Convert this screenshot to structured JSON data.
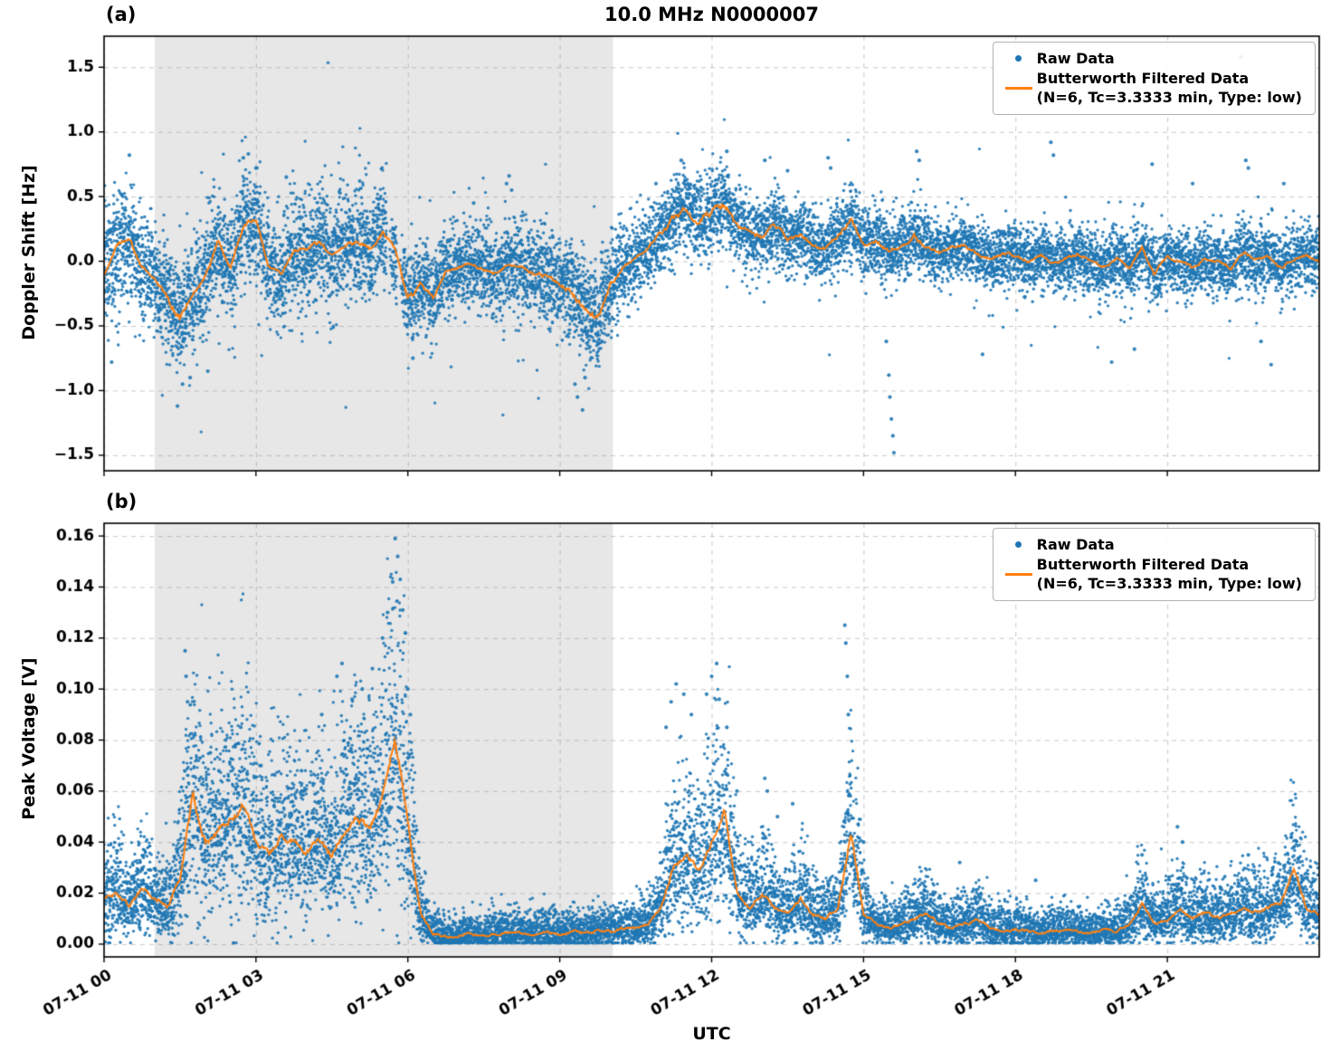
{
  "figure": {
    "legend": {
      "raw_label": "Raw Data",
      "filtered_label": "Butterworth Filtered Data",
      "filtered_sublabel": "(N=6, Tc=3.3333 min, Type: low)"
    },
    "colors": {
      "raw": "#1f77b4",
      "filtered": "#ff7f0e",
      "shade": "#e7e7e7",
      "grid": "#999999",
      "axis": "#000000"
    }
  },
  "chart_data": [
    {
      "type": "scatter",
      "panel_label": "(a)",
      "title": "10.0 MHz N0000007",
      "ylabel": "Doppler Shift [Hz]",
      "ylim": [
        -1.62,
        1.74
      ],
      "ytick_values": [
        1.5,
        1.0,
        0.5,
        0.0,
        -0.5,
        -1.0,
        -1.5
      ],
      "ytick_labels": [
        "1.5",
        "1.0",
        "0.5",
        "0.0",
        "−0.5",
        "−1.0",
        "−1.5"
      ],
      "x_hours_range": [
        0,
        24
      ],
      "xtick_hours": [
        0,
        3,
        6,
        9,
        12,
        15,
        18,
        21
      ],
      "xtick_labels": [
        "07-11 00",
        "07-11 03",
        "07-11 06",
        "07-11 09",
        "07-11 12",
        "07-11 15",
        "07-11 18",
        "07-11 21"
      ],
      "shaded_region_hours": [
        1.0,
        10.05
      ],
      "grid": true,
      "legend_position": "upper right",
      "series": [
        {
          "name": "Raw Data",
          "style": "scatter",
          "n_points": 12000,
          "seed": 42,
          "spread_profile_hours": [
            0,
            5.5,
            6.0,
            9.0,
            9.6,
            10.2,
            13,
            18,
            24
          ],
          "spread_profile_sigma": [
            0.21,
            0.21,
            0.17,
            0.17,
            0.2,
            0.16,
            0.14,
            0.12,
            0.12
          ],
          "tail_fraction": 0.04,
          "tail_scale": 2.2,
          "gaps_hours": [
            [
              5.58,
              5.68
            ],
            [
              5.78,
              5.88
            ]
          ],
          "outliers": [
            [
              0.15,
              -0.78
            ],
            [
              0.5,
              0.82
            ],
            [
              1.45,
              -1.12
            ],
            [
              1.55,
              -0.95
            ],
            [
              1.7,
              -0.9
            ],
            [
              2.05,
              -0.85
            ],
            [
              2.75,
              0.8
            ],
            [
              2.85,
              0.83
            ],
            [
              3.0,
              0.72
            ],
            [
              3.6,
              0.65
            ],
            [
              5.05,
              0.62
            ],
            [
              6.1,
              -0.75
            ],
            [
              7.3,
              0.45
            ],
            [
              7.95,
              0.6
            ],
            [
              8.0,
              0.66
            ],
            [
              8.05,
              0.55
            ],
            [
              9.3,
              -0.95
            ],
            [
              9.35,
              -1.05
            ],
            [
              9.45,
              -1.15
            ],
            [
              9.5,
              -0.9
            ],
            [
              10.9,
              0.6
            ],
            [
              11.4,
              0.78
            ],
            [
              12.3,
              0.85
            ],
            [
              13.05,
              0.78
            ],
            [
              13.5,
              0.7
            ],
            [
              14.3,
              0.8
            ],
            [
              14.35,
              0.72
            ],
            [
              15.45,
              -0.62
            ],
            [
              15.5,
              -0.88
            ],
            [
              15.52,
              -1.05
            ],
            [
              15.55,
              -1.22
            ],
            [
              15.58,
              -1.35
            ],
            [
              15.6,
              -1.48
            ],
            [
              16.05,
              0.85
            ],
            [
              16.1,
              0.78
            ],
            [
              17.35,
              -0.72
            ],
            [
              18.7,
              0.92
            ],
            [
              18.75,
              0.82
            ],
            [
              19.9,
              -0.78
            ],
            [
              20.35,
              -0.68
            ],
            [
              20.7,
              0.75
            ],
            [
              21.5,
              0.6
            ],
            [
              22.45,
              1.58
            ],
            [
              22.55,
              0.78
            ],
            [
              22.6,
              0.72
            ],
            [
              22.85,
              -0.62
            ],
            [
              23.05,
              -0.8
            ],
            [
              23.3,
              0.6
            ]
          ]
        },
        {
          "name": "Butterworth Filtered Data (N=6, Tc=3.3333 min, Type: low)",
          "style": "line",
          "x_start": 0,
          "x_step": 0.25,
          "y": [
            -0.12,
            0.12,
            0.18,
            -0.05,
            -0.12,
            -0.3,
            -0.42,
            -0.25,
            -0.12,
            0.15,
            -0.05,
            0.28,
            0.32,
            -0.05,
            -0.1,
            0.08,
            0.1,
            0.14,
            0.05,
            0.12,
            0.15,
            0.1,
            0.22,
            0.1,
            -0.3,
            -0.18,
            -0.28,
            -0.08,
            -0.05,
            -0.02,
            -0.06,
            -0.1,
            -0.02,
            -0.05,
            -0.1,
            -0.12,
            -0.18,
            -0.25,
            -0.38,
            -0.45,
            -0.18,
            -0.05,
            0.02,
            0.1,
            0.22,
            0.32,
            0.44,
            0.3,
            0.38,
            0.45,
            0.28,
            0.22,
            0.18,
            0.3,
            0.15,
            0.2,
            0.12,
            0.1,
            0.18,
            0.34,
            0.12,
            0.16,
            0.08,
            0.12,
            0.2,
            0.1,
            0.06,
            0.1,
            0.12,
            0.05,
            0.02,
            0.06,
            0.04,
            0.0,
            0.05,
            -0.02,
            0.02,
            0.06,
            0.0,
            -0.04,
            0.02,
            -0.05,
            0.1,
            -0.1,
            0.04,
            0.0,
            -0.05,
            0.02,
            0.0,
            -0.06,
            0.08,
            0.0,
            0.04,
            -0.05,
            0.02,
            0.05,
            0.0
          ],
          "wiggle": {
            "base": 0.02,
            "proportional": 0.1
          }
        }
      ]
    },
    {
      "type": "scatter",
      "panel_label": "(b)",
      "xlabel": "UTC",
      "ylabel": "Peak Voltage [V]",
      "ylim": [
        -0.005,
        0.165
      ],
      "ytick_values": [
        0.16,
        0.14,
        0.12,
        0.1,
        0.08,
        0.06,
        0.04,
        0.02,
        0.0
      ],
      "ytick_labels": [
        "0.16",
        "0.14",
        "0.12",
        "0.10",
        "0.08",
        "0.06",
        "0.04",
        "0.02",
        "0.00"
      ],
      "x_hours_range": [
        0,
        24
      ],
      "xtick_hours": [
        0,
        3,
        6,
        9,
        12,
        15,
        18,
        21
      ],
      "xtick_labels": [
        "07-11 00",
        "07-11 03",
        "07-11 06",
        "07-11 09",
        "07-11 12",
        "07-11 15",
        "07-11 18",
        "07-11 21"
      ],
      "shaded_region_hours": [
        1.0,
        10.05
      ],
      "grid": true,
      "legend_position": "upper right",
      "series": [
        {
          "name": "Raw Data",
          "style": "scatter",
          "n_points": 12000,
          "seed": 7,
          "spread": {
            "base": 0.0015,
            "proportional": 0.3,
            "up_bias": 1.6,
            "floor": 0.0005
          },
          "tail_fraction": 0.02,
          "tail_scale": 2.2,
          "outliers": [
            [
              1.6,
              0.115
            ],
            [
              1.62,
              0.105
            ],
            [
              1.65,
              0.095
            ],
            [
              2.1,
              0.075
            ],
            [
              2.4,
              0.08
            ],
            [
              2.7,
              0.085
            ],
            [
              3.1,
              0.07
            ],
            [
              3.9,
              0.068
            ],
            [
              4.3,
              0.09
            ],
            [
              4.6,
              0.105
            ],
            [
              4.7,
              0.11
            ],
            [
              4.9,
              0.096
            ],
            [
              5.1,
              0.1
            ],
            [
              5.3,
              0.108
            ],
            [
              5.5,
              0.12
            ],
            [
              5.6,
              0.13
            ],
            [
              5.7,
              0.142
            ],
            [
              5.75,
              0.159
            ],
            [
              5.8,
              0.152
            ],
            [
              5.85,
              0.143
            ],
            [
              5.9,
              0.131
            ],
            [
              5.95,
              0.122
            ],
            [
              6.0,
              0.1
            ],
            [
              6.05,
              0.09
            ],
            [
              11.1,
              0.085
            ],
            [
              11.2,
              0.095
            ],
            [
              11.3,
              0.102
            ],
            [
              11.45,
              0.098
            ],
            [
              11.6,
              0.09
            ],
            [
              11.9,
              0.098
            ],
            [
              12.0,
              0.105
            ],
            [
              12.1,
              0.11
            ],
            [
              12.15,
              0.096
            ],
            [
              12.3,
              0.085
            ],
            [
              12.5,
              0.06
            ],
            [
              13.05,
              0.065
            ],
            [
              13.1,
              0.06
            ],
            [
              13.3,
              0.05
            ],
            [
              13.6,
              0.055
            ],
            [
              14.63,
              0.125
            ],
            [
              14.65,
              0.118
            ],
            [
              14.68,
              0.105
            ],
            [
              14.7,
              0.09
            ],
            [
              15.0,
              0.04
            ],
            [
              16.9,
              0.032
            ],
            [
              18.4,
              0.025
            ],
            [
              20.5,
              0.035
            ],
            [
              21.2,
              0.046
            ],
            [
              21.3,
              0.04
            ],
            [
              22.6,
              0.035
            ],
            [
              23.45,
              0.042
            ],
            [
              23.5,
              0.038
            ]
          ]
        },
        {
          "name": "Butterworth Filtered Data (N=6, Tc=3.3333 min, Type: low)",
          "style": "line",
          "x_start": 0,
          "x_step": 0.25,
          "y": [
            0.018,
            0.02,
            0.015,
            0.022,
            0.018,
            0.015,
            0.025,
            0.058,
            0.04,
            0.045,
            0.048,
            0.055,
            0.04,
            0.035,
            0.042,
            0.04,
            0.036,
            0.042,
            0.035,
            0.045,
            0.05,
            0.045,
            0.058,
            0.082,
            0.048,
            0.012,
            0.004,
            0.003,
            0.003,
            0.004,
            0.003,
            0.004,
            0.005,
            0.004,
            0.004,
            0.005,
            0.004,
            0.005,
            0.004,
            0.005,
            0.005,
            0.006,
            0.006,
            0.008,
            0.014,
            0.03,
            0.036,
            0.028,
            0.04,
            0.052,
            0.02,
            0.014,
            0.02,
            0.014,
            0.012,
            0.018,
            0.012,
            0.01,
            0.014,
            0.044,
            0.012,
            0.008,
            0.006,
            0.008,
            0.01,
            0.012,
            0.008,
            0.006,
            0.008,
            0.01,
            0.006,
            0.005,
            0.006,
            0.005,
            0.004,
            0.005,
            0.006,
            0.005,
            0.004,
            0.006,
            0.005,
            0.008,
            0.016,
            0.008,
            0.01,
            0.014,
            0.01,
            0.012,
            0.01,
            0.012,
            0.014,
            0.012,
            0.014,
            0.016,
            0.03,
            0.014,
            0.012
          ],
          "wiggle": {
            "base": 0.0008,
            "proportional": 0.05
          },
          "floor": 0.001
        }
      ]
    }
  ]
}
